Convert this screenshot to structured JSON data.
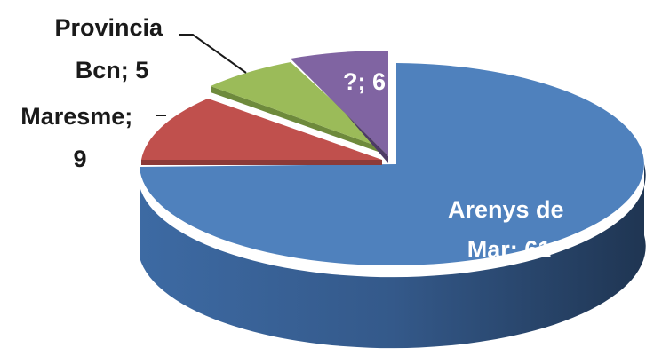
{
  "chart_data": {
    "type": "pie",
    "style": "3d-exploded",
    "slices": [
      {
        "label": "Arenys de Mar",
        "value": 61,
        "label_lines": [
          "Arenys de",
          "Mar; 61"
        ],
        "color": "#4f81bd"
      },
      {
        "label": "Maresme",
        "value": 9,
        "label_lines": [
          "Maresme;",
          "9"
        ],
        "color": "#c0504d"
      },
      {
        "label": "Provincia Bcn",
        "value": 5,
        "label_lines": [
          "Provincia",
          "Bcn; 5"
        ],
        "color": "#9bbb59"
      },
      {
        "label": "?",
        "value": 6,
        "label_lines": [
          "?; 6"
        ],
        "color": "#8064a2"
      }
    ],
    "legend": "none"
  }
}
